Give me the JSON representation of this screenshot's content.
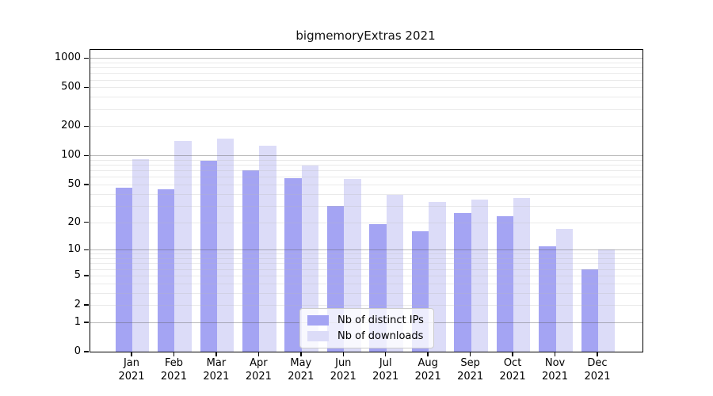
{
  "window": {
    "background": "#ffffff"
  },
  "chart_data": {
    "type": "bar",
    "title": "bigmemoryExtras 2021",
    "categories": [
      "Jan",
      "Feb",
      "Mar",
      "Apr",
      "May",
      "Jun",
      "Jul",
      "Aug",
      "Sep",
      "Oct",
      "Nov",
      "Dec"
    ],
    "year": "2021",
    "series": [
      {
        "name": "Nb of distinct IPs",
        "color": "#a4a4f3",
        "values": [
          46,
          45,
          88,
          70,
          58,
          30,
          19,
          16,
          25,
          23,
          11,
          6
        ]
      },
      {
        "name": "Nb of downloads",
        "color": "#dcdcf8",
        "values": [
          91,
          142,
          150,
          125,
          79,
          57,
          39,
          33,
          35,
          36,
          17,
          10
        ]
      }
    ],
    "xlabel": "",
    "ylabel": "",
    "y_scale": "log10(value+1)",
    "y_axis_top_decades": 3.083,
    "y_ticks": [
      0,
      1,
      2,
      5,
      10,
      20,
      50,
      100,
      200,
      500,
      1000
    ],
    "y_major_gridlines": [
      1,
      10,
      100,
      1000
    ],
    "y_minor_gridlines": [
      2,
      3,
      4,
      5,
      6,
      7,
      8,
      9,
      20,
      30,
      40,
      50,
      60,
      70,
      80,
      90,
      200,
      300,
      400,
      500,
      600,
      700,
      800,
      900
    ],
    "grid": true,
    "legend_position": "lower center-right"
  }
}
